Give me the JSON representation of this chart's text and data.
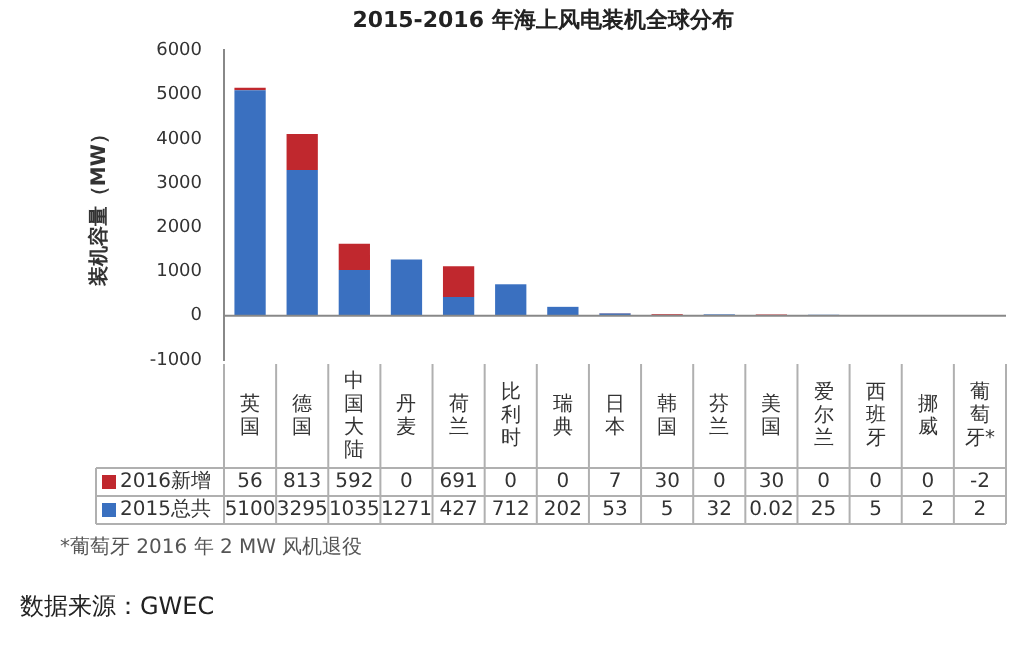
{
  "chart_data": {
    "type": "bar",
    "title": "2015-2016 年海上风电装机全球分布",
    "ylabel": "装机容量（MW）",
    "stacked": true,
    "legend": "bottom",
    "data_labels": true,
    "grid": false,
    "categories": [
      "英国",
      "德国",
      "中国大陆",
      "丹麦",
      "荷兰",
      "比利时",
      "瑞典",
      "日本",
      "韩国",
      "芬兰",
      "美国",
      "爱尔兰",
      "西班牙",
      "挪威",
      "葡萄牙*"
    ],
    "series": [
      {
        "name": "2015总共",
        "color": "#3a70c0",
        "values": [
          5100,
          3295,
          1035,
          1271,
          427,
          712,
          202,
          53,
          5,
          32,
          0.02,
          25,
          5,
          2,
          2
        ]
      },
      {
        "name": "2016新增",
        "color": "#c0282e",
        "values": [
          56,
          813,
          592,
          0,
          691,
          0,
          0,
          7,
          30,
          0,
          30,
          0,
          0,
          0,
          -2
        ]
      }
    ],
    "ref_lines": [
      {
        "axis": "y",
        "value": 0,
        "color": "#888888"
      }
    ],
    "ylim": [
      -1000,
      6000
    ],
    "yticks": [
      -1000,
      0,
      1000,
      2000,
      3000,
      4000,
      5000,
      6000
    ],
    "annotations": [
      "*葡萄牙 2016 年 2 MW 风机退役",
      "数据来源：GWEC"
    ]
  }
}
